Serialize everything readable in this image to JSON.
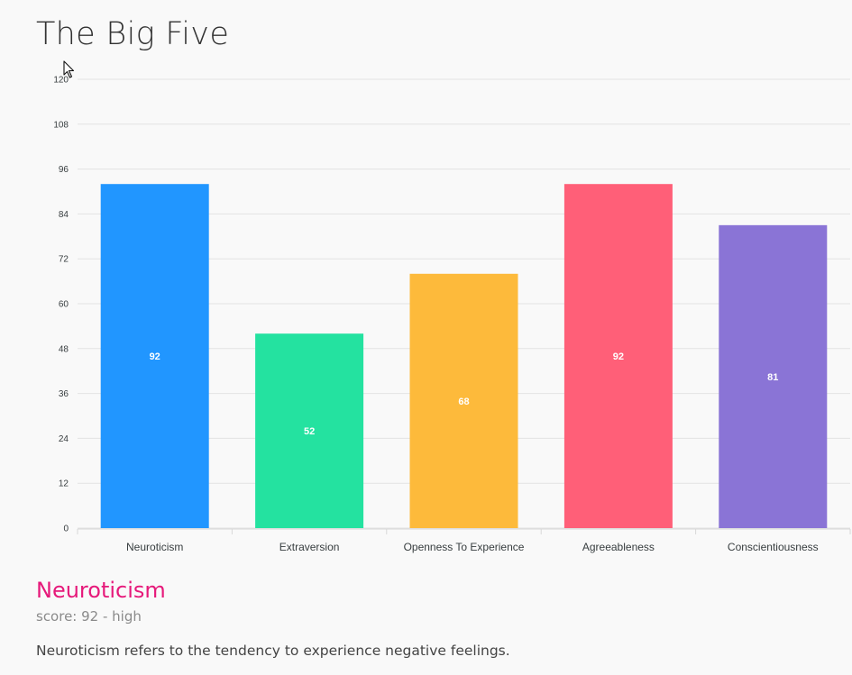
{
  "page": {
    "title": "The Big Five"
  },
  "detail": {
    "title": "Neuroticism",
    "score": "score: 92 - high",
    "description": "Neuroticism refers to the tendency to experience negative feelings."
  },
  "chart_data": {
    "type": "bar",
    "title": "",
    "xlabel": "",
    "ylabel": "",
    "ylim": [
      0,
      120
    ],
    "yticks": [
      0,
      12,
      24,
      36,
      48,
      60,
      72,
      84,
      96,
      108,
      120
    ],
    "grid": true,
    "categories": [
      "Neuroticism",
      "Extraversion",
      "Openness To Experience",
      "Agreeableness",
      "Conscientiousness"
    ],
    "values": [
      92,
      52,
      68,
      92,
      81
    ],
    "colors": [
      "#2196ff",
      "#24e2a0",
      "#fdba3b",
      "#ff5f78",
      "#8a74d6"
    ],
    "data_labels": [
      "92",
      "52",
      "68",
      "92",
      "81"
    ]
  }
}
